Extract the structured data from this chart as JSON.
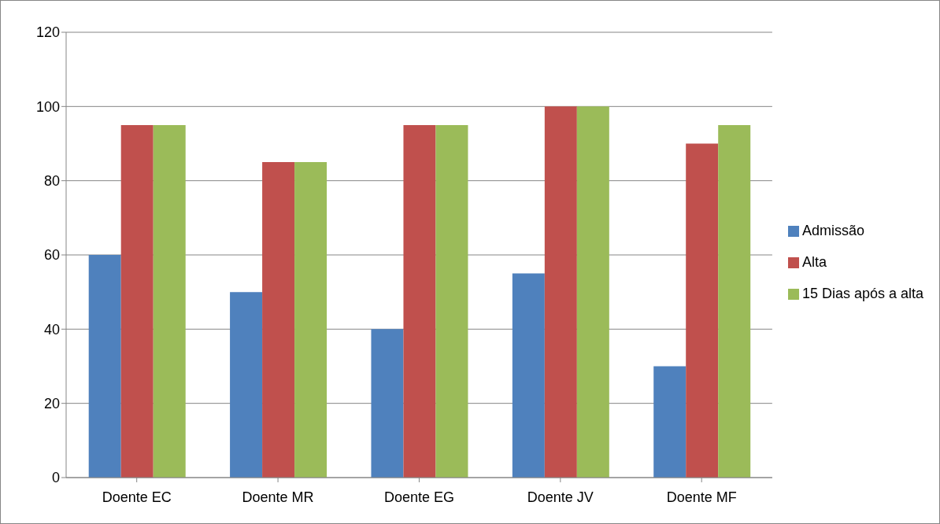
{
  "chart_data": {
    "type": "bar",
    "categories": [
      "Doente EC",
      "Doente MR",
      "Doente EG",
      "Doente JV",
      "Doente MF"
    ],
    "series": [
      {
        "name": "Admissão",
        "color": "#4f81bd",
        "values": [
          60,
          50,
          40,
          55,
          30
        ]
      },
      {
        "name": "Alta",
        "color": "#c0504d",
        "values": [
          95,
          85,
          95,
          100,
          90
        ]
      },
      {
        "name": "15 Dias após a alta",
        "color": "#9bbb59",
        "values": [
          95,
          85,
          95,
          100,
          95
        ]
      }
    ],
    "ylim": [
      0,
      120
    ],
    "yticks": [
      0,
      20,
      40,
      60,
      80,
      100,
      120
    ],
    "grid": "y",
    "legend": "right"
  }
}
